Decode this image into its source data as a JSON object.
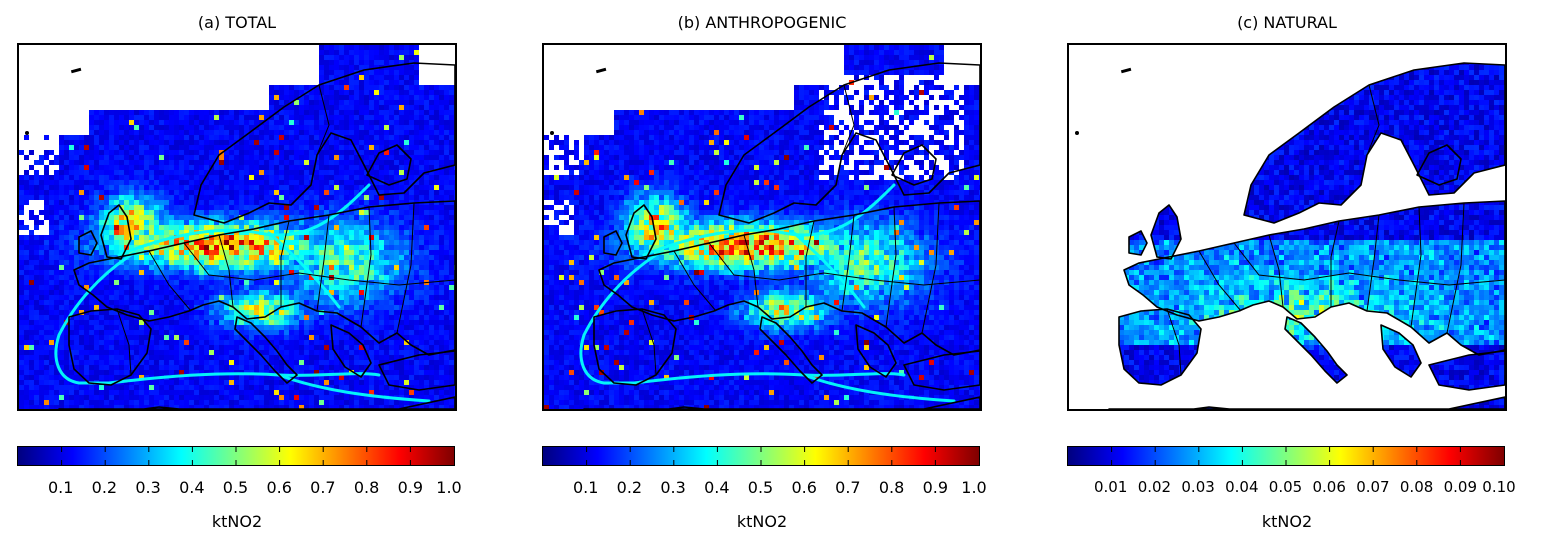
{
  "panels": [
    {
      "title": "(a) TOTAL",
      "variant": "total",
      "colorbar": {
        "min": 0.0,
        "max": 1.0,
        "ticks": [
          "0.1",
          "0.2",
          "0.3",
          "0.4",
          "0.5",
          "0.6",
          "0.7",
          "0.8",
          "0.9",
          "1.0"
        ],
        "label": "ktNO2"
      }
    },
    {
      "title": "(b) ANTHROPOGENIC",
      "variant": "anthropogenic",
      "colorbar": {
        "min": 0.0,
        "max": 1.0,
        "ticks": [
          "0.1",
          "0.2",
          "0.3",
          "0.4",
          "0.5",
          "0.6",
          "0.7",
          "0.8",
          "0.9",
          "1.0"
        ],
        "label": "ktNO2"
      }
    },
    {
      "title": "(c) NATURAL",
      "variant": "natural",
      "colorbar": {
        "min": 0.0,
        "max": 0.1,
        "ticks": [
          "0.01",
          "0.02",
          "0.03",
          "0.04",
          "0.05",
          "0.06",
          "0.07",
          "0.08",
          "0.09",
          "0.10"
        ],
        "label": "ktNO2"
      }
    }
  ],
  "colormap": "jet",
  "colors": {
    "jet": [
      "#00007f",
      "#0000ff",
      "#007fff",
      "#00ffff",
      "#7fff7f",
      "#ffff00",
      "#ff7f00",
      "#ff0000",
      "#7f0000"
    ],
    "coastline": "#000000",
    "nodata": "#ffffff"
  }
}
